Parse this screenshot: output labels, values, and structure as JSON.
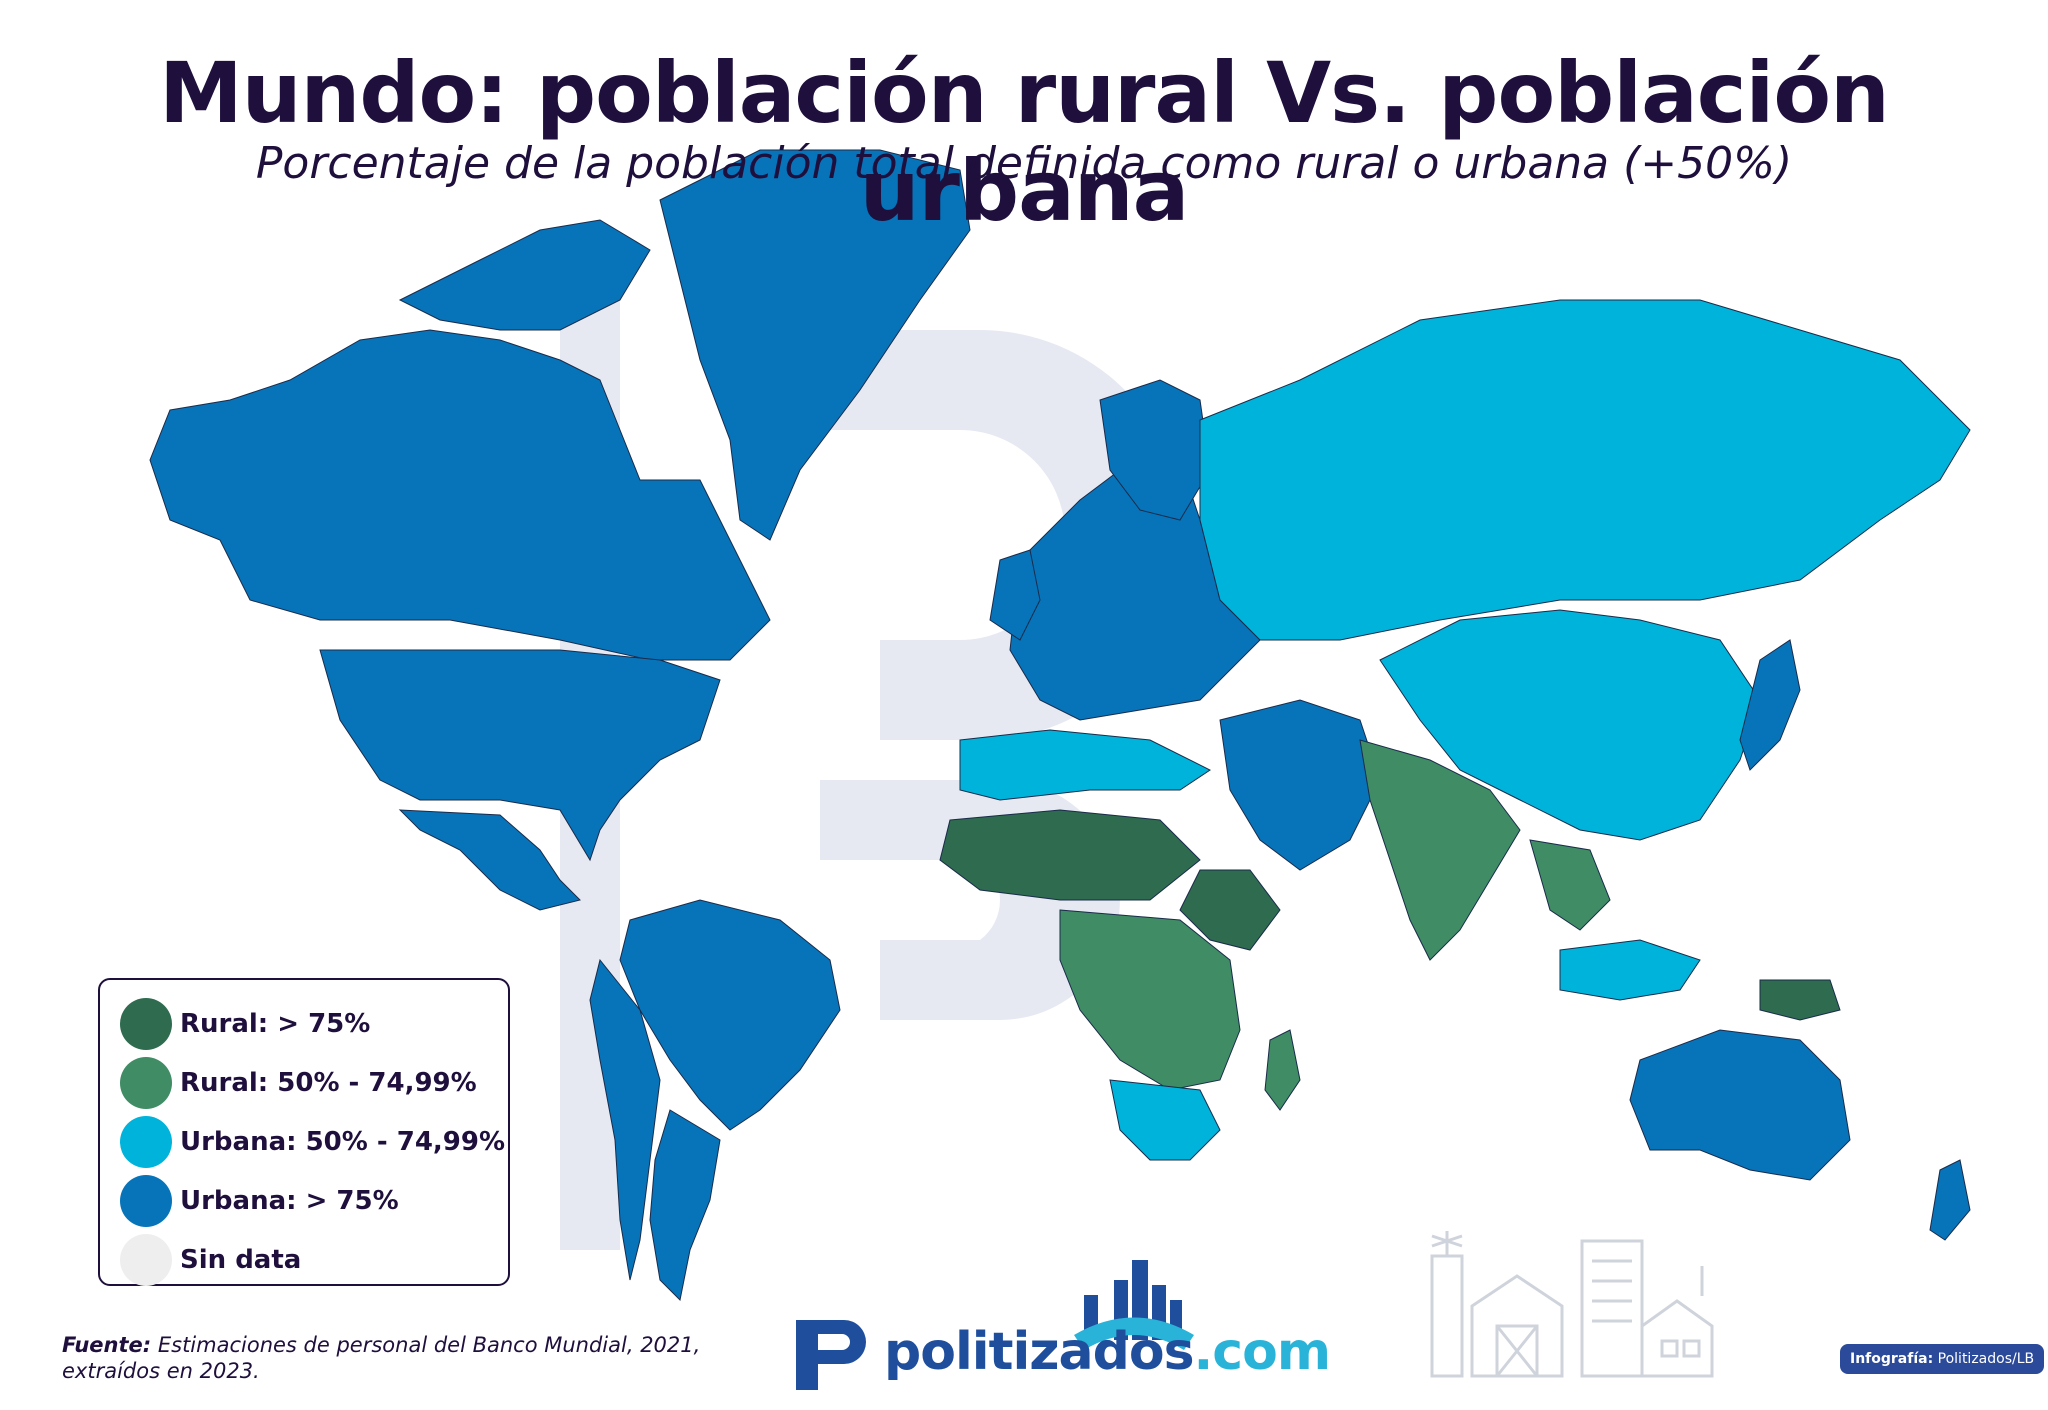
{
  "title": "Mundo: población rural Vs. población urbana",
  "subtitle": "Porcentaje de la población total definida como rural o urbana (+50%)",
  "colors": {
    "rural_75": "#2e6b4f",
    "rural_50": "#3f8c65",
    "urbana_50": "#00b3db",
    "urbana_75": "#0774ba",
    "sin_data": "#eeeeee",
    "text": "#1e0f3c"
  },
  "legend": {
    "items": [
      {
        "label": "Rural: > 75%",
        "color": "#2e6b4f"
      },
      {
        "label": "Rural: 50% - 74,99%",
        "color": "#3f8c65"
      },
      {
        "label": "Urbana: 50% - 74,99%",
        "color": "#00b3db"
      },
      {
        "label": "Urbana: > 75%",
        "color": "#0774ba"
      },
      {
        "label": "Sin data",
        "color": "#eeeeee"
      }
    ]
  },
  "source": {
    "label": "Fuente:",
    "text": "Estimaciones de personal del Banco Mundial, 2021, extraídos en 2023."
  },
  "brand": {
    "name": "politizados",
    "domain": ".com",
    "logo_icon": "city-skyline-icon"
  },
  "credit": {
    "label": "Infografía:",
    "text": "Politizados/LB"
  },
  "decoration_icon": "farm-and-city-icon",
  "regions": [
    {
      "name": "Canadá",
      "class": "urbana_75"
    },
    {
      "name": "Estados Unidos",
      "class": "urbana_75"
    },
    {
      "name": "México",
      "class": "urbana_75"
    },
    {
      "name": "Groenlandia",
      "class": "urbana_75"
    },
    {
      "name": "Brasil",
      "class": "urbana_75"
    },
    {
      "name": "Argentina",
      "class": "urbana_75"
    },
    {
      "name": "Europa",
      "class": "urbana_75"
    },
    {
      "name": "Rusia",
      "class": "urbana_50"
    },
    {
      "name": "China",
      "class": "urbana_50"
    },
    {
      "name": "India",
      "class": "rural_50"
    },
    {
      "name": "Sahel",
      "class": "rural_75"
    },
    {
      "name": "Etiopía",
      "class": "rural_75"
    },
    {
      "name": "África central",
      "class": "rural_50"
    },
    {
      "name": "Sudáfrica",
      "class": "urbana_50"
    },
    {
      "name": "Australia",
      "class": "urbana_75"
    },
    {
      "name": "Papúa Nueva Guinea",
      "class": "rural_75"
    },
    {
      "name": "Oriente Medio",
      "class": "urbana_75"
    }
  ]
}
